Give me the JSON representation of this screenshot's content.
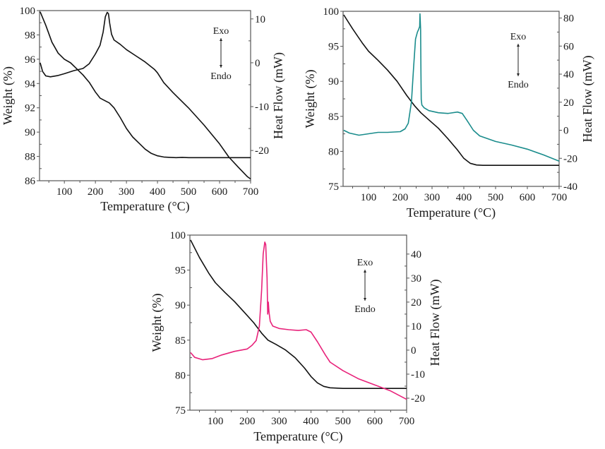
{
  "chart_data": [
    {
      "id": "panel-a",
      "type": "line",
      "title": "",
      "xlabel": "Temperature (°C)",
      "ylabel": "Weight (%)",
      "y2label": "Heat Flow (mW)",
      "xlim": [
        20,
        700
      ],
      "ylim": [
        86,
        100
      ],
      "y2lim": [
        -26.9,
        11.9
      ],
      "xticks": [
        100,
        200,
        300,
        400,
        500,
        600,
        700
      ],
      "yticks": [
        86,
        88,
        90,
        92,
        94,
        96,
        98,
        100
      ],
      "y2ticks": [
        -20,
        -10,
        0,
        10
      ],
      "grid": false,
      "annotation": {
        "exo": "Exo",
        "endo": "Endo"
      },
      "series": [
        {
          "name": "Weight",
          "axis": "left",
          "color": "#111111",
          "x": [
            22,
            40,
            60,
            80,
            100,
            120,
            140,
            160,
            180,
            200,
            215,
            230,
            245,
            260,
            280,
            300,
            320,
            340,
            360,
            380,
            400,
            420,
            440,
            460,
            480,
            500,
            600,
            700
          ],
          "y": [
            99.9,
            98.8,
            97.4,
            96.5,
            96.0,
            95.7,
            95.2,
            94.7,
            94.1,
            93.3,
            92.8,
            92.6,
            92.4,
            92.0,
            91.2,
            90.3,
            89.6,
            89.1,
            88.6,
            88.25,
            88.05,
            87.95,
            87.92,
            87.9,
            87.92,
            87.9,
            87.9,
            87.9
          ]
        },
        {
          "name": "Heat Flow",
          "axis": "right",
          "color": "#111111",
          "x": [
            22,
            30,
            40,
            55,
            80,
            100,
            130,
            160,
            180,
            200,
            215,
            225,
            232,
            238,
            242,
            246,
            252,
            260,
            280,
            300,
            330,
            360,
            390,
            400,
            420,
            450,
            500,
            550,
            600,
            630,
            660,
            690,
            700
          ],
          "y": [
            0.0,
            -2.0,
            -3.0,
            -3.2,
            -2.9,
            -2.5,
            -1.8,
            -1.3,
            -0.2,
            2.0,
            4.0,
            7.0,
            10.5,
            11.5,
            11.2,
            9.0,
            6.5,
            5.2,
            4.2,
            3.0,
            1.6,
            0.2,
            -1.5,
            -2.3,
            -4.5,
            -6.8,
            -10.3,
            -14.2,
            -18.5,
            -21.5,
            -23.8,
            -26.0,
            -26.5
          ]
        }
      ]
    },
    {
      "id": "panel-b",
      "type": "line",
      "title": "",
      "xlabel": "Temperature (°C)",
      "ylabel": "Weight (%)",
      "y2label": "Heat Flow (mW)",
      "xlim": [
        20,
        700
      ],
      "ylim": [
        75,
        100
      ],
      "y2lim": [
        -40,
        84.8
      ],
      "xticks": [
        100,
        200,
        300,
        400,
        500,
        600,
        700
      ],
      "yticks": [
        75,
        80,
        85,
        90,
        95,
        100
      ],
      "y2ticks": [
        -40,
        -20,
        0,
        20,
        40,
        60,
        80
      ],
      "grid": false,
      "annotation": {
        "exo": "Exo",
        "endo": "Endo"
      },
      "series": [
        {
          "name": "Weight",
          "axis": "left",
          "color": "#111111",
          "x": [
            22,
            50,
            80,
            100,
            130,
            160,
            190,
            220,
            245,
            265,
            290,
            320,
            350,
            380,
            400,
            420,
            440,
            460,
            500,
            600,
            700
          ],
          "y": [
            99.5,
            97.5,
            95.5,
            94.3,
            93.0,
            91.6,
            90.0,
            88.0,
            86.5,
            85.5,
            84.5,
            83.3,
            81.8,
            80.2,
            79.0,
            78.3,
            78.05,
            78.0,
            78.0,
            78.0,
            78.0
          ]
        },
        {
          "name": "Heat Flow",
          "axis": "right",
          "color": "#1a8c8c",
          "x": [
            22,
            40,
            70,
            100,
            130,
            160,
            200,
            215,
            225,
            235,
            242,
            248,
            254,
            258,
            261,
            262,
            264,
            265,
            266,
            268,
            275,
            290,
            320,
            350,
            380,
            395,
            410,
            430,
            450,
            500,
            550,
            600,
            650,
            700
          ],
          "y": [
            0,
            -2,
            -3.5,
            -2.5,
            -1.5,
            -1.5,
            -1,
            1,
            5,
            20,
            45,
            65,
            70,
            72,
            74,
            83,
            72,
            40,
            22,
            18,
            16,
            14,
            12.5,
            12,
            13,
            12,
            7,
            0,
            -4,
            -8,
            -10.5,
            -13.5,
            -17.5,
            -22
          ]
        }
      ]
    },
    {
      "id": "panel-c",
      "type": "line",
      "title": "",
      "xlabel": "Temperature (°C)",
      "ylabel": "Weight (%)",
      "y2label": "Heat Flow (mW)",
      "xlim": [
        20,
        700
      ],
      "ylim": [
        75,
        100
      ],
      "y2lim": [
        -25,
        47.9
      ],
      "xticks": [
        100,
        200,
        300,
        400,
        500,
        600,
        700
      ],
      "yticks": [
        75,
        80,
        85,
        90,
        95,
        100
      ],
      "y2ticks": [
        -20,
        -10,
        0,
        10,
        20,
        30,
        40
      ],
      "grid": false,
      "annotation": {
        "exo": "Exo",
        "endo": "Endo"
      },
      "series": [
        {
          "name": "Weight",
          "axis": "left",
          "color": "#111111",
          "x": [
            22,
            50,
            80,
            100,
            130,
            160,
            190,
            220,
            245,
            265,
            290,
            320,
            350,
            380,
            400,
            420,
            440,
            460,
            500,
            600,
            700
          ],
          "y": [
            99.3,
            96.8,
            94.5,
            93.2,
            91.8,
            90.5,
            89.0,
            87.5,
            86.0,
            85.0,
            84.4,
            83.6,
            82.5,
            81.0,
            79.8,
            78.9,
            78.4,
            78.2,
            78.1,
            78.1,
            78.1
          ]
        },
        {
          "name": "Heat Flow",
          "axis": "right",
          "color": "#e8227a",
          "x": [
            22,
            35,
            60,
            90,
            120,
            160,
            200,
            215,
            228,
            238,
            245,
            250,
            255,
            258,
            262,
            264,
            266,
            268,
            272,
            280,
            300,
            330,
            360,
            385,
            400,
            420,
            445,
            460,
            500,
            550,
            600,
            650,
            700
          ],
          "y": [
            -1,
            -3,
            -4,
            -3.5,
            -2,
            -0.5,
            0.5,
            2,
            4,
            10,
            25,
            40,
            45,
            44,
            30,
            15,
            20,
            16,
            12,
            10,
            9,
            8.5,
            8.2,
            8.5,
            7.5,
            3.5,
            -2,
            -5,
            -8.5,
            -12,
            -14.5,
            -17,
            -20.5
          ]
        }
      ]
    }
  ]
}
